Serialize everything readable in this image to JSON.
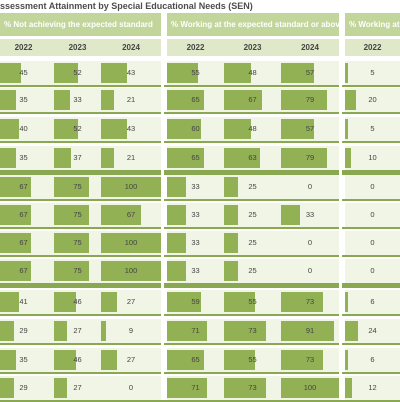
{
  "title": "ssessment Attainment by Special Educational Needs (SEN)",
  "chart_data": {
    "type": "table",
    "title": "ssessment Attainment by Special Educational Needs (SEN)",
    "columns": [
      "2022",
      "2023",
      "2024"
    ],
    "sections": [
      {
        "name": "% Not achieving the expected standard",
        "rows": [
          [
            45,
            52,
            43
          ],
          [
            35,
            33,
            21
          ],
          [
            40,
            52,
            43
          ],
          [
            35,
            37,
            21
          ],
          [
            67,
            75,
            100
          ],
          [
            67,
            75,
            67
          ],
          [
            67,
            75,
            100
          ],
          [
            67,
            75,
            100
          ],
          [
            41,
            46,
            27
          ],
          [
            29,
            27,
            9
          ],
          [
            35,
            46,
            27
          ],
          [
            29,
            27,
            0
          ]
        ]
      },
      {
        "name": "% Working at the expected standard or above",
        "rows": [
          [
            55,
            48,
            57
          ],
          [
            65,
            67,
            79
          ],
          [
            60,
            48,
            57
          ],
          [
            65,
            63,
            79
          ],
          [
            33,
            25,
            0
          ],
          [
            33,
            25,
            33
          ],
          [
            33,
            25,
            0
          ],
          [
            33,
            25,
            0
          ],
          [
            59,
            55,
            73
          ],
          [
            71,
            73,
            91
          ],
          [
            65,
            55,
            73
          ],
          [
            71,
            73,
            100
          ]
        ]
      },
      {
        "name": "% Working at gr",
        "rows": [
          [
            5
          ],
          [
            20
          ],
          [
            5
          ],
          [
            10
          ],
          [
            0
          ],
          [
            0
          ],
          [
            0
          ],
          [
            0
          ],
          [
            6
          ],
          [
            24
          ],
          [
            6
          ],
          [
            12
          ]
        ]
      }
    ],
    "value_range": [
      0,
      100
    ]
  },
  "colors": {
    "header": "#c2d59b",
    "bar": "#92b054",
    "divider": "#8aa751",
    "row_bg": "#f1f5e6"
  }
}
